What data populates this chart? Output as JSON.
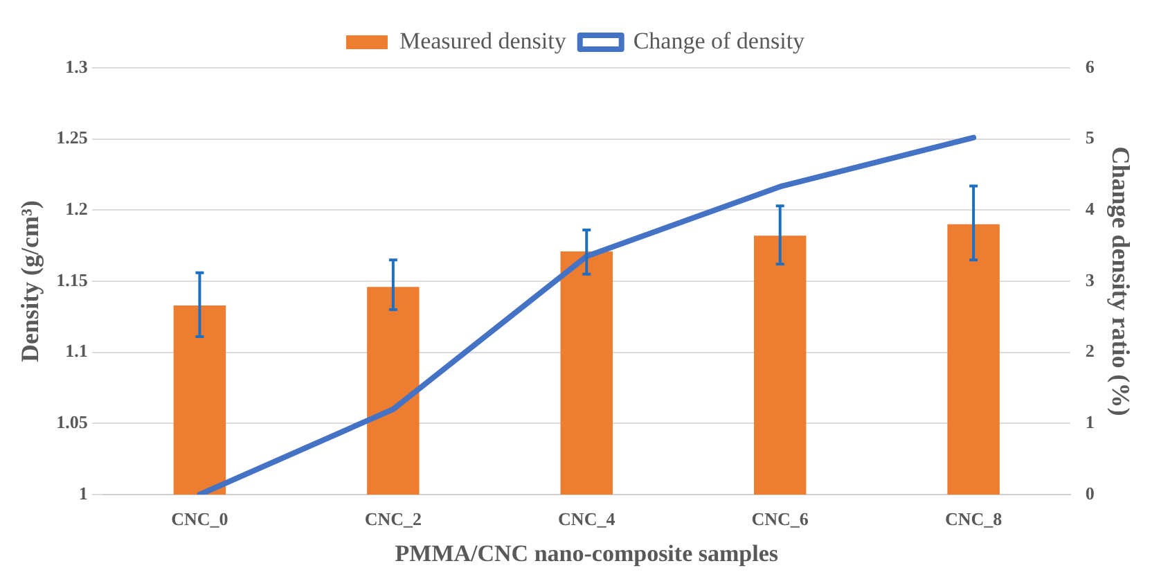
{
  "chart_data": {
    "type": "bar",
    "xlabel": "PMMA/CNC nano-composite samples",
    "ylabel": "Density (g/cm³)",
    "y2label": "Change density ratio (%)",
    "categories": [
      "CNC_0",
      "CNC_2",
      "CNC_4",
      "CNC_6",
      "CNC_8"
    ],
    "series": [
      {
        "name": "Measured density",
        "color": "#ed7d31",
        "values": [
          1.133,
          1.146,
          1.171,
          1.182,
          1.19
        ],
        "errors": [
          [
            1.111,
            1.156
          ],
          [
            1.13,
            1.165
          ],
          [
            1.155,
            1.186
          ],
          [
            1.162,
            1.203
          ],
          [
            1.165,
            1.217
          ]
        ]
      },
      {
        "name": "Change of density",
        "type": "line",
        "axis": "y2",
        "color": "#4472c4",
        "values": [
          0,
          1.2,
          3.35,
          4.33,
          5.02
        ]
      }
    ],
    "ylim": [
      1,
      1.3
    ],
    "yticks": [
      1,
      1.05,
      1.1,
      1.15,
      1.2,
      1.25,
      1.3
    ],
    "y2lim": [
      0,
      6
    ],
    "y2ticks": [
      0,
      1,
      2,
      3,
      4,
      5,
      6
    ],
    "grid": "y",
    "legend": "top",
    "marker": "none",
    "line_style": "solid"
  }
}
